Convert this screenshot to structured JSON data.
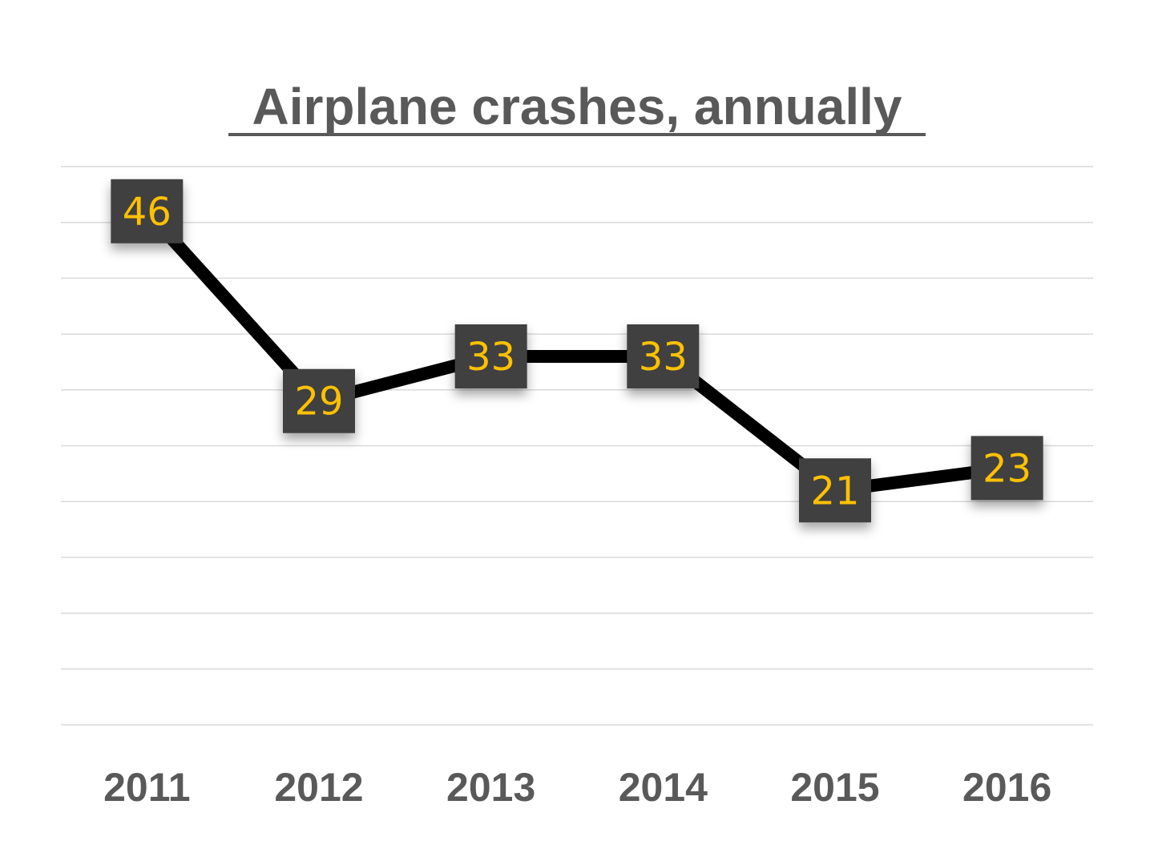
{
  "chart_data": {
    "type": "line",
    "title": "Airplane crashes, annually",
    "xlabel": "",
    "ylabel": "",
    "categories": [
      "2011",
      "2012",
      "2013",
      "2014",
      "2015",
      "2016"
    ],
    "series": [
      {
        "name": "Airplane crashes",
        "values": [
          46,
          29,
          33,
          33,
          21,
          23
        ]
      }
    ],
    "data_labels": [
      "46",
      "29",
      "33",
      "33",
      "21",
      "23"
    ],
    "ylim": [
      0,
      50
    ],
    "y_grid_step": 5,
    "grid": true,
    "y_tick_labels_visible": false,
    "legend": "none",
    "colors": {
      "line": "#000000",
      "label_box": "#404040",
      "label_text": "#ffc000",
      "title": "#595959",
      "tick_text": "#595959",
      "grid": "#d9d9d9"
    }
  }
}
